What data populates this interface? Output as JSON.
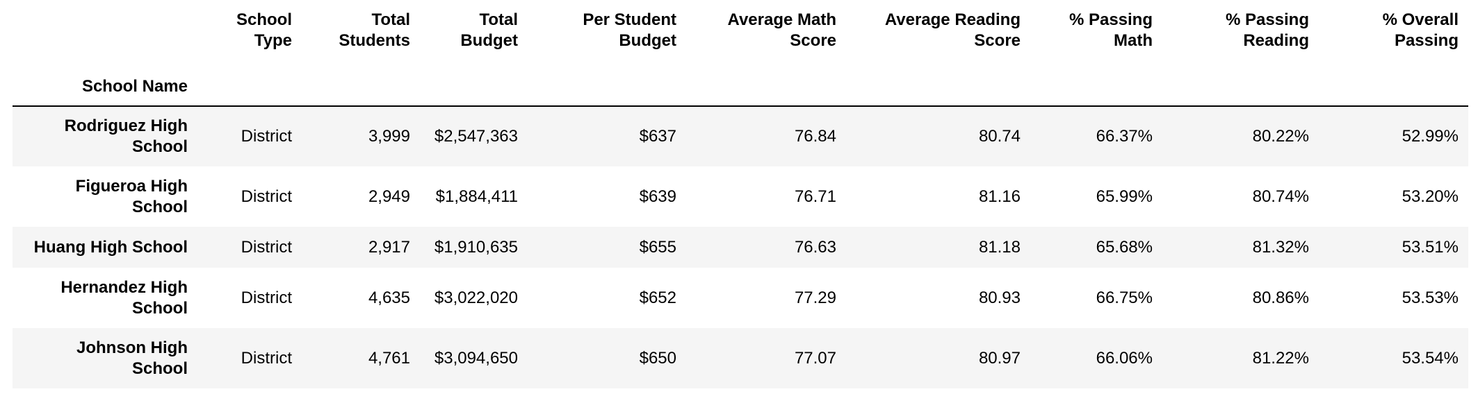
{
  "table": {
    "index_name": "School Name",
    "columns": [
      "School Type",
      "Total Students",
      "Total Budget",
      "Per Student Budget",
      "Average Math Score",
      "Average Reading Score",
      "% Passing Math",
      "% Passing Reading",
      "% Overall Passing"
    ],
    "rows": [
      {
        "name": "Rodriguez High School",
        "cells": [
          "District",
          "3,999",
          "$2,547,363",
          "$637",
          "76.84",
          "80.74",
          "66.37%",
          "80.22%",
          "52.99%"
        ]
      },
      {
        "name": "Figueroa High School",
        "cells": [
          "District",
          "2,949",
          "$1,884,411",
          "$639",
          "76.71",
          "81.16",
          "65.99%",
          "80.74%",
          "53.20%"
        ]
      },
      {
        "name": "Huang High School",
        "cells": [
          "District",
          "2,917",
          "$1,910,635",
          "$655",
          "76.63",
          "81.18",
          "65.68%",
          "81.32%",
          "53.51%"
        ]
      },
      {
        "name": "Hernandez High School",
        "cells": [
          "District",
          "4,635",
          "$3,022,020",
          "$652",
          "77.29",
          "80.93",
          "66.75%",
          "80.86%",
          "53.53%"
        ]
      },
      {
        "name": "Johnson High School",
        "cells": [
          "District",
          "4,761",
          "$3,094,650",
          "$650",
          "77.07",
          "80.97",
          "66.06%",
          "81.22%",
          "53.54%"
        ]
      }
    ]
  }
}
